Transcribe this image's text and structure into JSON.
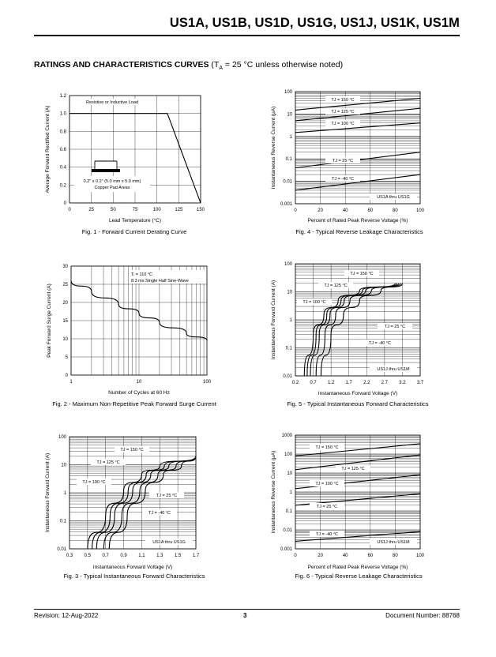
{
  "header": {
    "title": "US1A, US1B, US1D, US1G, US1J, US1K, US1M"
  },
  "section": {
    "title_bold": "RATINGS AND CHARACTERISTICS CURVES",
    "title_rest": " (T",
    "title_sub": "A",
    "title_end": " = 25 °C unless otherwise noted)"
  },
  "footer": {
    "revision": "Revision: 12-Aug-2022",
    "page": "3",
    "docnum": "Document Number: 88768"
  },
  "chart_data": [
    {
      "id": "fig1",
      "type": "line",
      "caption": "Fig. 1 - Forward Current Derating Curve",
      "xlabel": "Lead Temperature (°C)",
      "ylabel": "Average Forward Rectified Current (A)",
      "xticks": [
        "0",
        "25",
        "50",
        "75",
        "100",
        "125",
        "150"
      ],
      "yticks": [
        "0",
        "0.2",
        "0.4",
        "0.6",
        "0.8",
        "1.0",
        "1.2"
      ],
      "xlim": [
        0,
        150
      ],
      "ylim": [
        0,
        1.2
      ],
      "annotations": [
        "Resistive or Inductive Load",
        "0.2\" x 0.2\" (5.0 mm x 5.0 mm)",
        "Copper Pad Areas"
      ],
      "series": [
        {
          "x": [
            0,
            112,
            150
          ],
          "y": [
            1.0,
            1.0,
            0
          ]
        }
      ]
    },
    {
      "id": "fig2",
      "type": "line",
      "caption": "Fig. 2 - Maximum Non-Repetitive Peak Forward Surge Current",
      "xlabel": "Number of Cycles at 60 Hz",
      "ylabel": "Peak Forward Surge Current (A)",
      "xticks": [
        "1",
        "10",
        "100"
      ],
      "yticks": [
        "0",
        "5",
        "10",
        "15",
        "20",
        "25",
        "30"
      ],
      "xlim": [
        1,
        100
      ],
      "ylim": [
        0,
        30
      ],
      "xscale": "log",
      "annotations": [
        "Tₗ = 110 °C",
        "8.3 ms Single Half Sine-Wave"
      ],
      "series": [
        {
          "x": [
            1,
            2,
            5,
            10,
            20,
            50,
            100
          ],
          "y": [
            26,
            23,
            19.5,
            17,
            14.5,
            11.5,
            9.5
          ]
        }
      ]
    },
    {
      "id": "fig3",
      "type": "line",
      "caption": "Fig. 3 - Typical Instantaneous Forward Characteristics",
      "xlabel": "Instantaneous Forward Voltage (V)",
      "ylabel": "Instantaneous Forward Current (A)",
      "xticks": [
        "0.3",
        "0.5",
        "0.7",
        "0.9",
        "1.1",
        "1.3",
        "1.5",
        "1.7"
      ],
      "yticks": [
        "0.01",
        "0.1",
        "1",
        "10",
        "100"
      ],
      "xlim": [
        0.3,
        1.7
      ],
      "ylim": [
        0.01,
        100
      ],
      "yscale": "log",
      "annotations": [
        "US1A thru US1G"
      ],
      "series": [
        {
          "name": "TJ = 150 °C",
          "x": [
            0.5,
            0.7,
            0.9,
            1.1,
            1.3,
            1.7
          ],
          "y": [
            0.01,
            0.15,
            1.2,
            4.5,
            9,
            20
          ]
        },
        {
          "name": "TJ = 125 °C",
          "x": [
            0.55,
            0.75,
            0.95,
            1.15,
            1.35,
            1.7
          ],
          "y": [
            0.01,
            0.15,
            1.2,
            4.5,
            9,
            20
          ]
        },
        {
          "name": "TJ = 100 °C",
          "x": [
            0.6,
            0.8,
            1.0,
            1.2,
            1.4,
            1.7
          ],
          "y": [
            0.01,
            0.15,
            1.2,
            4.5,
            9,
            20
          ]
        },
        {
          "name": "TJ = 25 °C",
          "x": [
            0.68,
            0.88,
            1.08,
            1.28,
            1.48,
            1.7
          ],
          "y": [
            0.01,
            0.15,
            1.2,
            4.5,
            9,
            20
          ]
        },
        {
          "name": "TJ = -40 °C",
          "x": [
            0.74,
            0.94,
            1.14,
            1.34,
            1.54,
            1.7
          ],
          "y": [
            0.01,
            0.15,
            1.2,
            4.5,
            9,
            20
          ]
        }
      ]
    },
    {
      "id": "fig4",
      "type": "line",
      "caption": "Fig. 4 - Typical Reverse Leakage Characteristics",
      "xlabel": "Percent of Rated Peak Reverse Voltage (%)",
      "ylabel": "Instantaneous Reverse Current (μA)",
      "xticks": [
        "0",
        "20",
        "40",
        "60",
        "80",
        "100"
      ],
      "yticks": [
        "0.001",
        "0.01",
        "0.1",
        "1",
        "10",
        "100"
      ],
      "xlim": [
        0,
        100
      ],
      "ylim": [
        0.001,
        100
      ],
      "yscale": "log",
      "annotations": [
        "US1A thru US1G"
      ],
      "series": [
        {
          "name": "TJ = 150 °C",
          "x": [
            0,
            100
          ],
          "y": [
            15,
            50
          ]
        },
        {
          "name": "TJ = 125 °C",
          "x": [
            0,
            100
          ],
          "y": [
            5,
            18
          ]
        },
        {
          "name": "TJ = 100 °C",
          "x": [
            0,
            100
          ],
          "y": [
            1.5,
            4
          ]
        },
        {
          "name": "TJ = 25 °C",
          "x": [
            0,
            100
          ],
          "y": [
            0.04,
            0.2
          ]
        },
        {
          "name": "TJ = -40 °C",
          "x": [
            0,
            100
          ],
          "y": [
            0.004,
            0.02
          ]
        }
      ]
    },
    {
      "id": "fig5",
      "type": "line",
      "caption": "Fig. 5 - Typical Instantaneous Forward Characteristics",
      "xlabel": "Instantaneous Forward Voltage (V)",
      "ylabel": "Instantaneous Forward Current (A)",
      "xticks": [
        "0.2",
        "0.7",
        "1.2",
        "1.7",
        "2.2",
        "2.7",
        "3.2",
        "3.7"
      ],
      "yticks": [
        "0.01",
        "0.1",
        "1",
        "10",
        "100"
      ],
      "xlim": [
        0.2,
        3.7
      ],
      "ylim": [
        0.01,
        100
      ],
      "yscale": "log",
      "annotations": [
        "US1J thru US1M"
      ],
      "series": [
        {
          "name": "TJ = 150 °C",
          "x": [
            0.45,
            0.7,
            1.0,
            1.4,
            2.0,
            3.0
          ],
          "y": [
            0.01,
            0.3,
            1.5,
            5,
            11,
            20
          ]
        },
        {
          "name": "TJ = 125 °C",
          "x": [
            0.53,
            0.78,
            1.08,
            1.48,
            2.08,
            3.05
          ],
          "y": [
            0.01,
            0.3,
            1.5,
            5,
            11,
            20
          ]
        },
        {
          "name": "TJ = 100 °C",
          "x": [
            0.62,
            0.87,
            1.17,
            1.57,
            2.17,
            3.1
          ],
          "y": [
            0.01,
            0.3,
            1.5,
            5,
            11,
            20
          ]
        },
        {
          "name": "TJ = 25 °C",
          "x": [
            0.78,
            1.03,
            1.33,
            1.73,
            2.33,
            3.15
          ],
          "y": [
            0.01,
            0.3,
            1.5,
            5,
            11,
            20
          ]
        },
        {
          "name": "TJ = -40 °C",
          "x": [
            0.92,
            1.2,
            1.55,
            2.0,
            2.6,
            3.2
          ],
          "y": [
            0.01,
            0.3,
            1.5,
            5,
            11,
            20
          ]
        }
      ]
    },
    {
      "id": "fig6",
      "type": "line",
      "caption": "Fig. 6 - Typical Reverse Leakage Characteristics",
      "xlabel": "Percent of Rated Peak Reverse Voltage (%)",
      "ylabel": "Instantaneous Reverse Current (μA)",
      "xticks": [
        "0",
        "20",
        "40",
        "60",
        "80",
        "100"
      ],
      "yticks": [
        "0.001",
        "0.01",
        "0.1",
        "1",
        "10",
        "100",
        "1000"
      ],
      "xlim": [
        0,
        100
      ],
      "ylim": [
        0.001,
        1000
      ],
      "yscale": "log",
      "annotations": [
        "US1J thru US1M"
      ],
      "series": [
        {
          "name": "TJ = 150 °C",
          "x": [
            0,
            100
          ],
          "y": [
            80,
            350
          ]
        },
        {
          "name": "TJ = 125 °C",
          "x": [
            0,
            100
          ],
          "y": [
            15,
            90
          ]
        },
        {
          "name": "TJ = 100 °C",
          "x": [
            0,
            100
          ],
          "y": [
            1.5,
            8
          ]
        },
        {
          "name": "TJ = 25 °C",
          "x": [
            0,
            100
          ],
          "y": [
            0.2,
            0.8
          ]
        },
        {
          "name": "TJ = -40 °C",
          "x": [
            0,
            100
          ],
          "y": [
            0.0025,
            0.008
          ]
        }
      ]
    }
  ]
}
